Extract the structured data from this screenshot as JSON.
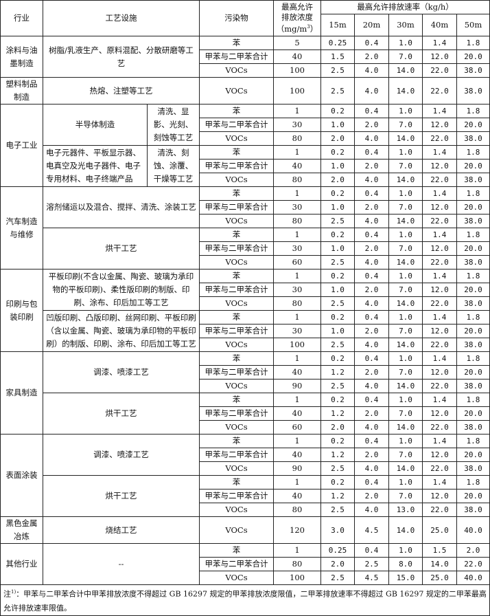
{
  "header": {
    "industry": "行业",
    "process": "工艺设施",
    "pollutant": "污染物",
    "conc_line1": "最高允许",
    "conc_line2": "排放浓度",
    "conc_unit": "（mg/m",
    "conc_unit_sup": "3",
    "conc_unit_end": "）",
    "rate": "最高允许排放速率（kg/h）",
    "heights": [
      "15m",
      "20m",
      "30m",
      "40m",
      "50m"
    ]
  },
  "industries": [
    {
      "name": "涂料与油墨制造",
      "processes": [
        {
          "name": "树脂/乳液生产、原料混配、分散研磨等工艺",
          "rows": [
            {
              "pollutant": "苯",
              "conc": "5",
              "rates": [
                "0.25",
                "0.4",
                "1.0",
                "1.4",
                "1.8"
              ]
            },
            {
              "pollutant": "甲苯与二甲苯合计",
              "conc": "40",
              "rates": [
                "1.5",
                "2.0",
                "7.0",
                "12.0",
                "20.0"
              ]
            },
            {
              "pollutant": "VOCs",
              "conc": "100",
              "rates": [
                "2.5",
                "4.0",
                "14.0",
                "22.0",
                "38.0"
              ]
            }
          ]
        }
      ]
    },
    {
      "name": "塑料制品制造",
      "processes": [
        {
          "name": "热熔、注塑等工艺",
          "rows": [
            {
              "pollutant": "VOCs",
              "conc": "100",
              "rates": [
                "2.5",
                "4.0",
                "14.0",
                "22.0",
                "38.0"
              ]
            }
          ]
        }
      ]
    },
    {
      "name": "电子工业",
      "processes": [
        {
          "name": "半导体制造",
          "sub": "清洗、显影、光刻、刻蚀等工艺",
          "rows": [
            {
              "pollutant": "苯",
              "conc": "1",
              "rates": [
                "0.2",
                "0.4",
                "1.0",
                "1.4",
                "1.8"
              ]
            },
            {
              "pollutant": "甲苯与二甲苯合计",
              "conc": "30",
              "rates": [
                "1.0",
                "2.0",
                "7.0",
                "12.0",
                "20.0"
              ]
            },
            {
              "pollutant": "VOCs",
              "conc": "80",
              "rates": [
                "2.0",
                "4.0",
                "14.0",
                "22.0",
                "38.0"
              ]
            }
          ]
        },
        {
          "name": "电子元器件、平板显示器、电真空及光电子器件、电子专用材料、电子终端产品",
          "sub": "清洗、刻蚀、涂覆、干燥等工艺",
          "left": true,
          "rows": [
            {
              "pollutant": "苯",
              "conc": "1",
              "rates": [
                "0.2",
                "0.4",
                "1.0",
                "1.4",
                "1.8"
              ]
            },
            {
              "pollutant": "甲苯与二甲苯合计",
              "conc": "40",
              "rates": [
                "1.0",
                "2.0",
                "7.0",
                "12.0",
                "20.0"
              ]
            },
            {
              "pollutant": "VOCs",
              "conc": "80",
              "rates": [
                "2.0",
                "4.0",
                "14.0",
                "22.0",
                "38.0"
              ]
            }
          ]
        }
      ]
    },
    {
      "name": "汽车制造与维修",
      "processes": [
        {
          "name": "溶剂储运以及混合、搅拌、清洗、涂装工艺",
          "rows": [
            {
              "pollutant": "苯",
              "conc": "1",
              "rates": [
                "0.2",
                "0.4",
                "1.0",
                "1.4",
                "1.8"
              ]
            },
            {
              "pollutant": "甲苯与二甲苯合计",
              "conc": "30",
              "rates": [
                "1.0",
                "2.0",
                "7.0",
                "12.0",
                "20.0"
              ]
            },
            {
              "pollutant": "VOCs",
              "conc": "80",
              "rates": [
                "2.5",
                "4.0",
                "14.0",
                "22.0",
                "38.0"
              ]
            }
          ]
        },
        {
          "name": "烘干工艺",
          "rows": [
            {
              "pollutant": "苯",
              "conc": "1",
              "rates": [
                "0.2",
                "0.4",
                "1.0",
                "1.4",
                "1.8"
              ]
            },
            {
              "pollutant": "甲苯与二甲苯合计",
              "conc": "30",
              "rates": [
                "1.0",
                "2.0",
                "7.0",
                "12.0",
                "20.0"
              ]
            },
            {
              "pollutant": "VOCs",
              "conc": "60",
              "rates": [
                "2.5",
                "4.0",
                "14.0",
                "22.0",
                "38.0"
              ]
            }
          ]
        }
      ]
    },
    {
      "name": "印刷与包装印刷",
      "processes": [
        {
          "name": "平板印刷(不含以金属、陶瓷、玻璃为承印物的平板印刷)、柔性版印刷的制版、印刷、涂布、印后加工等工艺",
          "rows": [
            {
              "pollutant": "苯",
              "conc": "1",
              "rates": [
                "0.2",
                "0.4",
                "1.0",
                "1.4",
                "1.8"
              ]
            },
            {
              "pollutant": "甲苯与二甲苯合计",
              "conc": "30",
              "rates": [
                "1.0",
                "2.0",
                "7.0",
                "12.0",
                "20.0"
              ]
            },
            {
              "pollutant": "VOCs",
              "conc": "80",
              "rates": [
                "2.5",
                "4.0",
                "14.0",
                "22.0",
                "38.0"
              ]
            }
          ]
        },
        {
          "name": "凹版印刷、凸版印刷、丝网印刷、平板印刷（含以金属、陶瓷、玻璃为承印物的平板印刷）的制版、印刷、涂布、印后加工等工艺",
          "rows": [
            {
              "pollutant": "苯",
              "conc": "1",
              "rates": [
                "0.2",
                "0.4",
                "1.0",
                "1.4",
                "1.8"
              ]
            },
            {
              "pollutant": "甲苯与二甲苯合计",
              "conc": "30",
              "rates": [
                "1.0",
                "2.0",
                "7.0",
                "12.0",
                "20.0"
              ]
            },
            {
              "pollutant": "VOCs",
              "conc": "100",
              "rates": [
                "2.5",
                "4.0",
                "14.0",
                "22.0",
                "38.0"
              ]
            }
          ]
        }
      ]
    },
    {
      "name": "家具制造",
      "processes": [
        {
          "name": "调漆、喷漆工艺",
          "rows": [
            {
              "pollutant": "苯",
              "conc": "1",
              "rates": [
                "0.2",
                "0.4",
                "1.0",
                "1.4",
                "1.8"
              ]
            },
            {
              "pollutant": "甲苯与二甲苯合计",
              "conc": "40",
              "rates": [
                "1.2",
                "2.0",
                "7.0",
                "12.0",
                "20.0"
              ]
            },
            {
              "pollutant": "VOCs",
              "conc": "90",
              "rates": [
                "2.5",
                "4.0",
                "14.0",
                "22.0",
                "38.0"
              ]
            }
          ]
        },
        {
          "name": "烘干工艺",
          "rows": [
            {
              "pollutant": "苯",
              "conc": "1",
              "rates": [
                "0.2",
                "0.4",
                "1.0",
                "1.4",
                "1.8"
              ]
            },
            {
              "pollutant": "甲苯与二甲苯合计",
              "conc": "40",
              "rates": [
                "1.2",
                "2.0",
                "7.0",
                "12.0",
                "20.0"
              ]
            },
            {
              "pollutant": "VOCs",
              "conc": "60",
              "rates": [
                "2.0",
                "4.0",
                "14.0",
                "22.0",
                "38.0"
              ]
            }
          ]
        }
      ]
    },
    {
      "name": "表面涂装",
      "processes": [
        {
          "name": "调漆、喷漆工艺",
          "rows": [
            {
              "pollutant": "苯",
              "conc": "1",
              "rates": [
                "0.2",
                "0.4",
                "1.0",
                "1.4",
                "1.8"
              ]
            },
            {
              "pollutant": "甲苯与二甲苯合计",
              "conc": "40",
              "rates": [
                "1.2",
                "2.0",
                "7.0",
                "12.0",
                "20.0"
              ]
            },
            {
              "pollutant": "VOCs",
              "conc": "90",
              "rates": [
                "2.5",
                "4.0",
                "14.0",
                "22.0",
                "38.0"
              ]
            }
          ]
        },
        {
          "name": "烘干工艺",
          "rows": [
            {
              "pollutant": "苯",
              "conc": "1",
              "rates": [
                "0.2",
                "0.4",
                "1.0",
                "1.4",
                "1.8"
              ]
            },
            {
              "pollutant": "甲苯与二甲苯合计",
              "conc": "40",
              "rates": [
                "1.2",
                "2.0",
                "7.0",
                "12.0",
                "20.0"
              ]
            },
            {
              "pollutant": "VOCs",
              "conc": "80",
              "rates": [
                "2.5",
                "4.0",
                "13.0",
                "22.0",
                "38.0"
              ]
            }
          ]
        }
      ]
    },
    {
      "name": "黑色金属冶炼",
      "processes": [
        {
          "name": "烧结工艺",
          "rows": [
            {
              "pollutant": "VOCs",
              "conc": "120",
              "rates": [
                "3.0",
                "4.5",
                "14.0",
                "25.0",
                "40.0"
              ]
            }
          ]
        }
      ]
    },
    {
      "name": "其他行业",
      "processes": [
        {
          "name": "--",
          "rows": [
            {
              "pollutant": "苯",
              "conc": "1",
              "rates": [
                "0.25",
                "0.4",
                "1.0",
                "1.5",
                "2.0"
              ]
            },
            {
              "pollutant": "甲苯与二甲苯合计",
              "conc": "80",
              "rates": [
                "2.0",
                "2.5",
                "8.0",
                "14.0",
                "22.0"
              ]
            },
            {
              "pollutant": "VOCs",
              "conc": "100",
              "rates": [
                "2.5",
                "4.5",
                "15.0",
                "25.0",
                "40.0"
              ]
            }
          ]
        }
      ]
    }
  ],
  "note": {
    "prefix": "注",
    "sup": "1)",
    "text": "：甲苯与二甲苯合计中甲苯排放浓度不得超过 GB 16297 规定的甲苯排放浓度限值，二甲苯排放速率不得超过 GB 16297 规定的二甲苯最高允许排放速率限值。"
  }
}
